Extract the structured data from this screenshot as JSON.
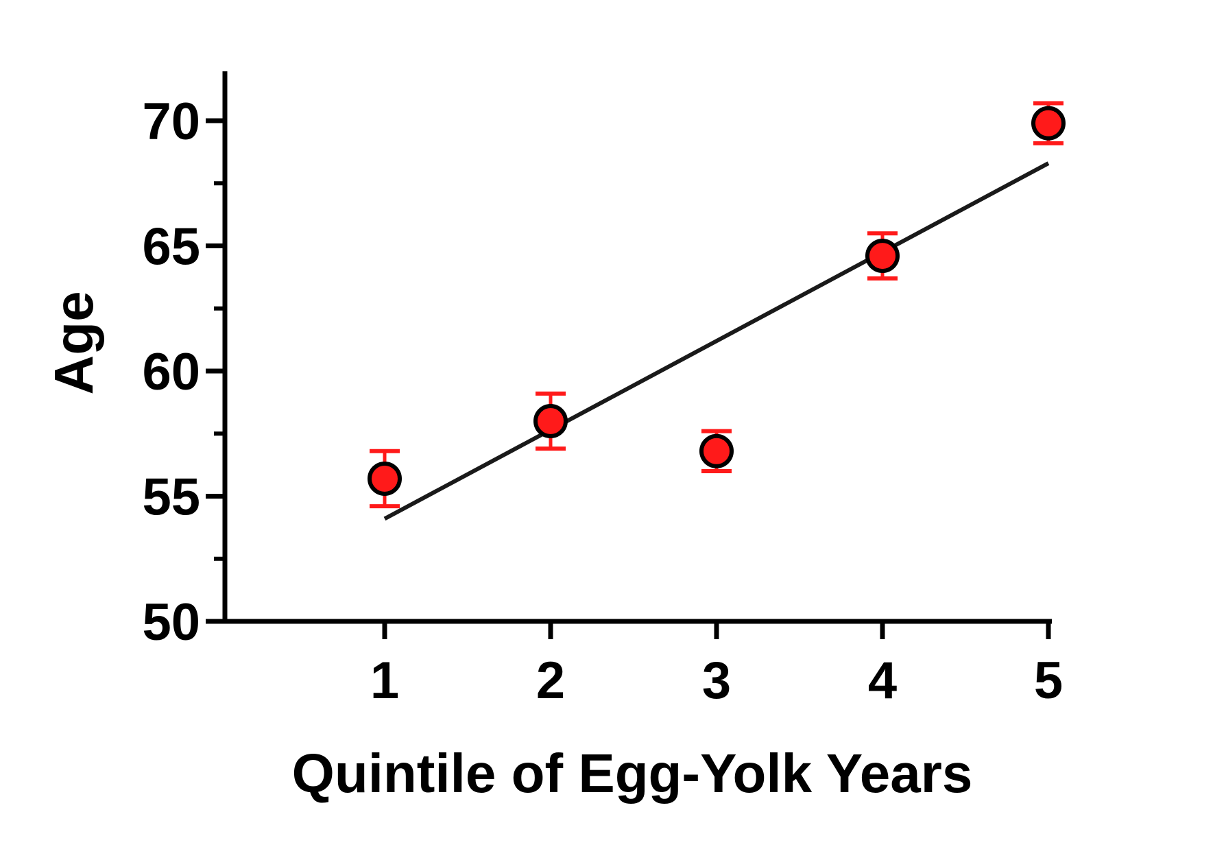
{
  "chart_data": {
    "type": "scatter",
    "title": "",
    "xlabel": "Quintile of Egg-Yolk Years",
    "ylabel": "Age",
    "x_ticks": [
      "1",
      "2",
      "3",
      "4",
      "5"
    ],
    "y_ticks": [
      "50",
      "55",
      "60",
      "65",
      "70"
    ],
    "xlim": [
      0,
      5
    ],
    "ylim": [
      50,
      72
    ],
    "y_minor_tick_step": 2.5,
    "grid": false,
    "legend": "none",
    "series": [
      {
        "x": [
          1,
          2,
          3,
          4,
          5
        ],
        "y": [
          55.7,
          58.0,
          56.8,
          64.6,
          69.9
        ],
        "error": [
          1.1,
          1.1,
          0.8,
          0.9,
          0.8
        ],
        "marker_color": "#ff1a1a",
        "error_color": "#ff1a1a"
      }
    ],
    "trendline": {
      "x": [
        1,
        5
      ],
      "y": [
        54.1,
        68.3
      ],
      "color": "#1a1a1a"
    }
  }
}
